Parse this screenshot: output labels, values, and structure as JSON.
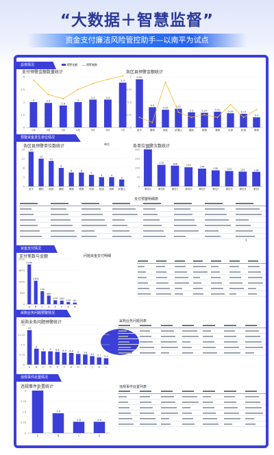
{
  "page": {
    "title": "“大数据＋智慧监督”",
    "subtitle": "资金支付廉洁风险管控助手—以南平为试点"
  },
  "sections": {
    "s1": "总体情况",
    "s2": "预警资金发生单位情况",
    "s3": "资金支付情况",
    "s4": "采购业务问题预警情况",
    "s5": "违规事件处置情况"
  },
  "captions": {
    "c1": "支付预警金额数量统计",
    "c2": "各区县预警金额统计",
    "c3": "各区县预警单位数统计",
    "c4": "各单位预警次数统计",
    "c5": "支付笔数与金额",
    "c6": "问题资金支付明细",
    "c7": "采购业务问题预警统计",
    "c8": "采购业务问题列表",
    "c9": "违规事件处置统计",
    "c10": "违规事件处置列表",
    "badge": "单位",
    "page_no": "1"
  },
  "colors": {
    "bar": "#3b3fd8",
    "line": "#f5b731",
    "accent": "#2b3a9a"
  },
  "legend": {
    "a": "预警金额",
    "b": "预警笔数"
  },
  "chart_data": [
    {
      "type": "bar",
      "id": "c1",
      "categories": [
        "1月",
        "2月",
        "3月",
        "4月",
        "5月",
        "6月",
        "7月"
      ],
      "values": [
        3,
        2.9,
        2.6,
        3,
        3.3,
        3.3,
        5.3
      ],
      "line_values": [
        5.6,
        3.9,
        3.4,
        4.5,
        5.2,
        5.7,
        6.1
      ],
      "ylim": [
        0,
        6
      ]
    },
    {
      "type": "bar",
      "id": "c2",
      "categories": [
        "延平",
        "建阳",
        "邵武",
        "武夷山",
        "建瓯",
        "顺昌",
        "浦城",
        "光泽",
        "松溪",
        "政和"
      ],
      "values": [
        0.95,
        0.4,
        0.35,
        0.37,
        0.3,
        0.29,
        0.31,
        0.28,
        0.27,
        0.2
      ],
      "line_values": [
        0.2,
        0.1,
        0.9,
        0.3,
        0.2,
        0.25,
        0.2,
        0.45,
        0.2,
        0.35
      ],
      "ylim": [
        0,
        1
      ]
    },
    {
      "type": "bar",
      "id": "c3",
      "categories": [
        "延平",
        "建阳",
        "邵武",
        "建瓯",
        "浦城",
        "顺昌",
        "光泽",
        "松溪",
        "政和",
        "武夷山"
      ],
      "values": [
        15,
        12,
        11,
        8,
        6,
        6,
        5,
        4,
        4,
        3
      ],
      "ylim": [
        0,
        16
      ]
    },
    {
      "type": "bar",
      "id": "c4",
      "categories": [
        "单位A",
        "单位B",
        "单位C",
        "单位D",
        "单位E",
        "单位F",
        "单位G",
        "单位H",
        "单位I"
      ],
      "values": [
        300,
        175,
        168,
        155,
        144,
        130,
        125,
        120,
        118
      ],
      "ylim": [
        0,
        300
      ]
    },
    {
      "type": "bar",
      "id": "c5",
      "categories": [
        "A",
        "B",
        "C",
        "D",
        "E",
        "F",
        "G",
        "H"
      ],
      "values": [
        2200,
        1300,
        720,
        480,
        220,
        200,
        120,
        90
      ],
      "ylim": [
        0,
        2500
      ]
    },
    {
      "type": "bar",
      "id": "c6",
      "categories": [
        "A",
        "B",
        "C",
        "D",
        "E",
        "F",
        "G",
        "H",
        "I",
        "J",
        "K",
        "L"
      ],
      "values": [
        13,
        6,
        5,
        5,
        4.8,
        4.5,
        4.4,
        4,
        3.8,
        3.2,
        2.7,
        2.4
      ],
      "ylim": [
        0,
        15
      ]
    },
    {
      "type": "bar",
      "id": "c7",
      "categories": [
        "A",
        "B",
        "C",
        "D"
      ],
      "values": [
        3,
        1.4,
        0.8,
        0.8
      ],
      "ylim": [
        0,
        3
      ]
    }
  ],
  "tables": {
    "t1": {
      "title": "支付预警明细表",
      "rows": 6
    },
    "t2": {
      "title": "问题资金支付明细",
      "rows": 6
    },
    "t3": {
      "title": "采购业务问题列表",
      "rows": 5
    },
    "t4": {
      "title": "违规事件处置列表",
      "rows": 6
    }
  }
}
